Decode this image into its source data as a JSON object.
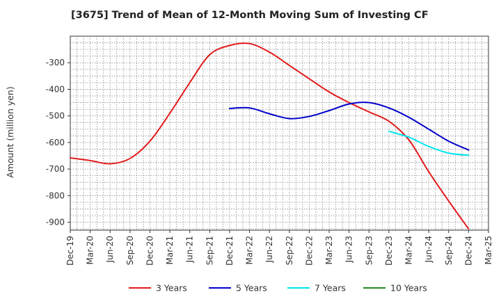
{
  "chart_data": {
    "type": "line",
    "title": "[3675]  Trend of Mean of 12-Month Moving Sum of Investing CF",
    "xlabel": "",
    "ylabel": "Amount (million yen)",
    "ylim": [
      -930,
      -200
    ],
    "yticks": [
      -300,
      -400,
      -500,
      -600,
      -700,
      -800,
      -900
    ],
    "grid": true,
    "legend_position": "bottom",
    "categories": [
      "Dec-19",
      "Mar-20",
      "Jun-20",
      "Sep-20",
      "Dec-20",
      "Mar-21",
      "Jun-21",
      "Sep-21",
      "Dec-21",
      "Mar-22",
      "Jun-22",
      "Sep-22",
      "Dec-22",
      "Mar-23",
      "Jun-23",
      "Sep-23",
      "Dec-23",
      "Mar-24",
      "Jun-24",
      "Sep-24",
      "Dec-24",
      "Mar-25"
    ],
    "series": [
      {
        "name": "3 Years",
        "color": "#e31a1c",
        "values": [
          -658,
          -668,
          -680,
          -660,
          -595,
          -490,
          -375,
          -270,
          -235,
          -228,
          -260,
          -310,
          -360,
          -410,
          -450,
          -485,
          -520,
          -590,
          -710,
          -820,
          -925,
          null
        ]
      },
      {
        "name": "5 Years",
        "color": "#0000cc",
        "values": [
          null,
          null,
          null,
          null,
          null,
          null,
          null,
          null,
          -472,
          -470,
          -492,
          -510,
          -502,
          -480,
          -455,
          -450,
          -470,
          -505,
          -550,
          -595,
          -628,
          null
        ]
      },
      {
        "name": "7 Years",
        "color": "#00e5ee",
        "values": [
          null,
          null,
          null,
          null,
          null,
          null,
          null,
          null,
          null,
          null,
          null,
          null,
          null,
          null,
          null,
          null,
          -558,
          -580,
          -615,
          -640,
          -648,
          null
        ]
      },
      {
        "name": "10 Years",
        "color": "#228b22",
        "values": [
          null,
          null,
          null,
          null,
          null,
          null,
          null,
          null,
          null,
          null,
          null,
          null,
          null,
          null,
          null,
          null,
          null,
          null,
          null,
          null,
          null,
          null
        ]
      }
    ]
  }
}
